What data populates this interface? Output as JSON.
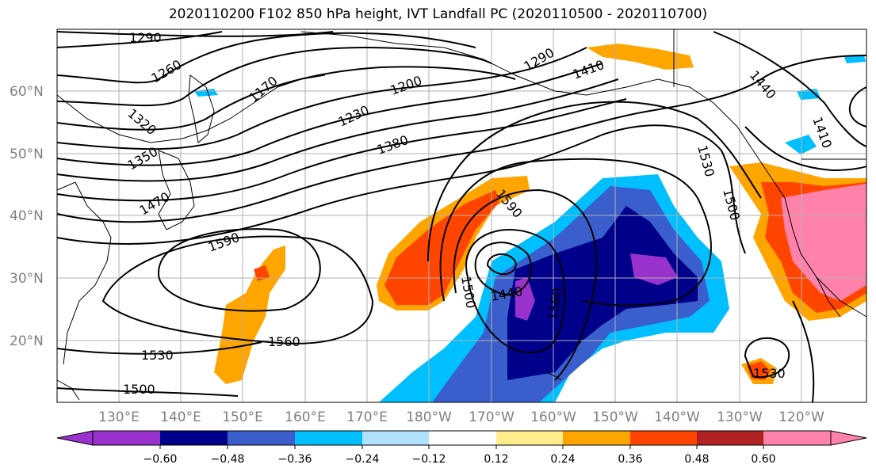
{
  "title": "2020110200 F102 850 hPa height, IVT Landfall PC (2020110500 - 2020110700)",
  "lat_labels": [
    "60°N",
    "50°N",
    "40°N",
    "30°N",
    "20°N"
  ],
  "lon_labels": [
    "130°E",
    "140°E",
    "150°E",
    "160°E",
    "170°E",
    "180°W",
    "170°W",
    "160°W",
    "150°W",
    "140°W",
    "130°W",
    "120°W"
  ],
  "contour_labels": [
    "1290",
    "1260",
    "1170",
    "1320",
    "1350",
    "1230",
    "1200",
    "1380",
    "1470",
    "1590",
    "1560",
    "1530",
    "1500",
    "1410",
    "1440",
    "1290",
    "1530",
    "1500",
    "1590",
    "1500",
    "1440",
    "1560",
    "1530",
    "1410"
  ],
  "colorbar": {
    "colors": [
      "#9932CC",
      "#00008B",
      "#3A5FCD",
      "#00BFFF",
      "#B0E2FF",
      "#FFFFFF",
      "#FFEC8B",
      "#FFA500",
      "#FF4500",
      "#B22222",
      "#FF82AB"
    ],
    "tick_labels": [
      "−0.60",
      "−0.48",
      "−0.36",
      "−0.24",
      "−0.12",
      "0.12",
      "0.24",
      "0.36",
      "0.48",
      "0.60"
    ]
  },
  "map_colors": {
    "coast": "#000000",
    "grid": "#b0b0b0",
    "contour": "#000000"
  }
}
